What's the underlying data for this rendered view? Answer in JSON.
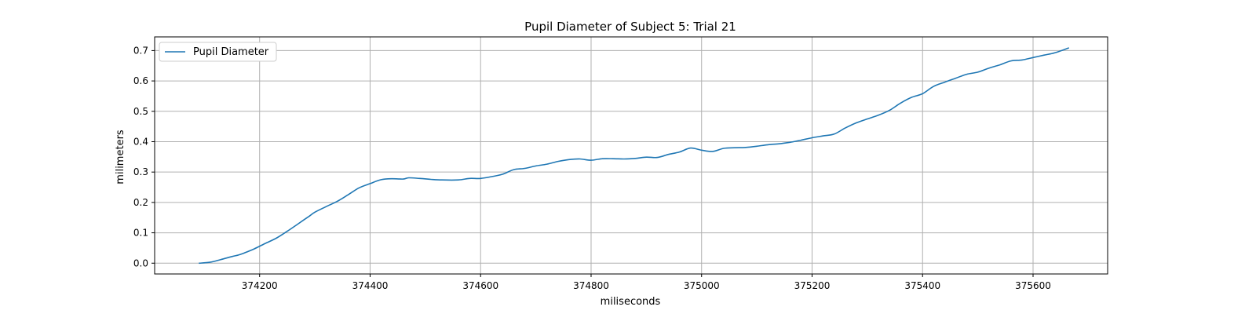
{
  "chart_data": {
    "type": "line",
    "title": "Pupil Diameter of Subject 5: Trial 21",
    "xlabel": "miliseconds",
    "ylabel": "milimeters",
    "xlim": [
      374010,
      375735
    ],
    "ylim": [
      -0.0355,
      0.745
    ],
    "xticks": [
      374200,
      374400,
      374600,
      374800,
      375000,
      375200,
      375400,
      375600
    ],
    "yticks": [
      0.0,
      0.1,
      0.2,
      0.3,
      0.4,
      0.5,
      0.6,
      0.7
    ],
    "ytick_labels": [
      "0.0",
      "0.1",
      "0.2",
      "0.3",
      "0.4",
      "0.5",
      "0.6",
      "0.7"
    ],
    "grid": true,
    "legend_position": "top-left",
    "series": [
      {
        "name": "Pupil Diameter",
        "color": "#1f77b4",
        "x": [
          374090,
          374110,
          374130,
          374150,
          374160,
          374170,
          374190,
          374210,
          374230,
          374250,
          374270,
          374290,
          374300,
          374320,
          374340,
          374360,
          374380,
          374400,
          374420,
          374440,
          374460,
          374470,
          374490,
          374510,
          374530,
          374560,
          374580,
          374600,
          374620,
          374640,
          374660,
          374680,
          374700,
          374720,
          374740,
          374760,
          374780,
          374800,
          374820,
          374840,
          374860,
          374880,
          374900,
          374920,
          374940,
          374960,
          374980,
          375000,
          375020,
          375040,
          375060,
          375080,
          375100,
          375120,
          375140,
          375160,
          375180,
          375200,
          375220,
          375240,
          375260,
          375280,
          375300,
          375320,
          375340,
          375360,
          375380,
          375400,
          375420,
          375440,
          375460,
          375480,
          375500,
          375520,
          375540,
          375560,
          375580,
          375600,
          375620,
          375640,
          375665
        ],
        "values": [
          0.0,
          0.003,
          0.012,
          0.022,
          0.026,
          0.032,
          0.047,
          0.065,
          0.082,
          0.105,
          0.13,
          0.155,
          0.168,
          0.186,
          0.203,
          0.225,
          0.248,
          0.262,
          0.275,
          0.278,
          0.277,
          0.281,
          0.279,
          0.276,
          0.274,
          0.274,
          0.279,
          0.279,
          0.285,
          0.293,
          0.308,
          0.312,
          0.32,
          0.326,
          0.335,
          0.341,
          0.343,
          0.339,
          0.344,
          0.344,
          0.343,
          0.345,
          0.349,
          0.348,
          0.358,
          0.366,
          0.379,
          0.372,
          0.368,
          0.378,
          0.38,
          0.381,
          0.385,
          0.39,
          0.393,
          0.398,
          0.405,
          0.413,
          0.419,
          0.425,
          0.445,
          0.462,
          0.475,
          0.487,
          0.503,
          0.527,
          0.546,
          0.558,
          0.582,
          0.596,
          0.609,
          0.622,
          0.629,
          0.642,
          0.653,
          0.666,
          0.669,
          0.677,
          0.685,
          0.693,
          0.709
        ]
      }
    ]
  }
}
